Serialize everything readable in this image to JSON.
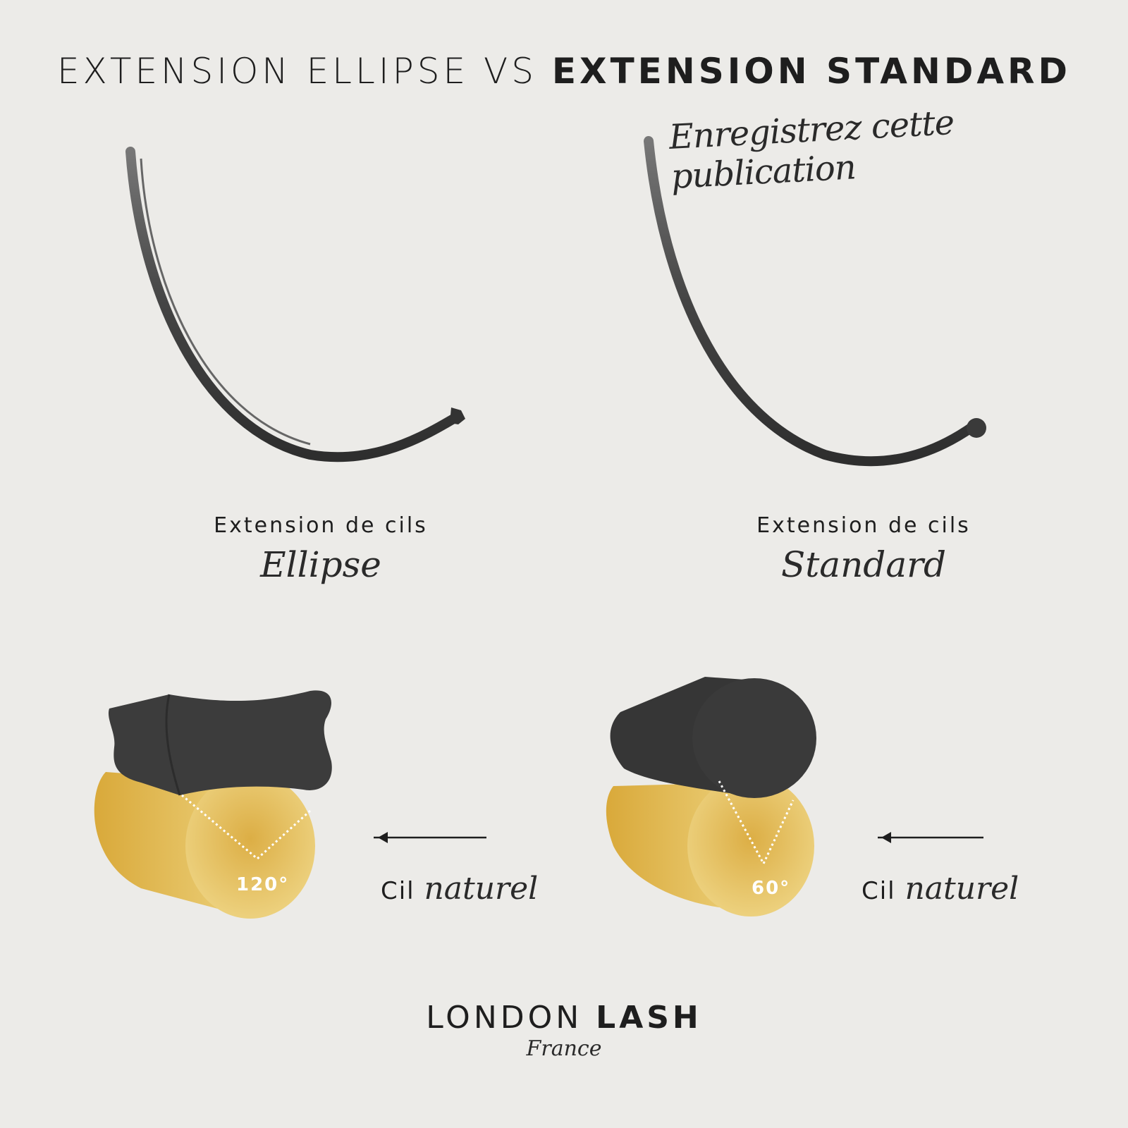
{
  "header": {
    "title_light": "EXTENSION ELLIPSE VS",
    "title_bold": "EXTENSION STANDARD",
    "subtitle": "Enregistrez cette publication"
  },
  "left": {
    "label": "Extension de cils",
    "type": "Ellipse",
    "angle": "120°",
    "arrow_label": "Cil",
    "arrow_label_script": "naturel"
  },
  "right": {
    "label": "Extension de cils",
    "type": "Standard",
    "angle": "60°",
    "arrow_label": "Cil",
    "arrow_label_script": "naturel"
  },
  "logo": {
    "light": "LONDON",
    "bold": "LASH",
    "sub": "France"
  },
  "colors": {
    "background": "#ecebe8",
    "lash": "#3a3a3a",
    "natural_lash": "#e2b94d",
    "text": "#1e1e1e"
  }
}
